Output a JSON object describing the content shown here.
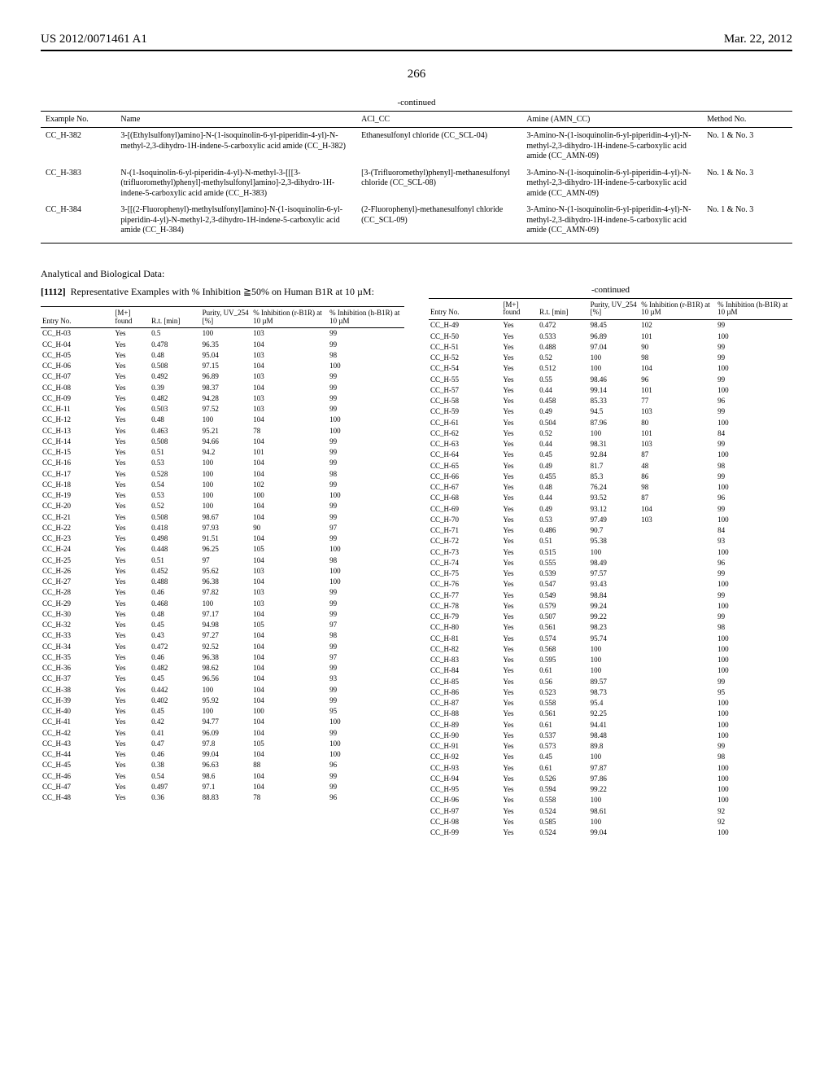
{
  "header": {
    "pub_no": "US 2012/0071461 A1",
    "date": "Mar. 22, 2012"
  },
  "page_number": "266",
  "table1": {
    "continued": "-continued",
    "headers": [
      "Example\nNo.",
      "Name",
      "ACl_CC",
      "Amine (AMN_CC)",
      "Method No."
    ],
    "rows": [
      {
        "no": "CC_H-382",
        "name": "3-[(Ethylsulfonyl)amino]-N-(1-isoquinolin-6-yl-piperidin-4-yl)-N-methyl-2,3-dihydro-1H-indene-5-carboxylic acid amide (CC_H-382)",
        "acl": "Ethanesulfonyl chloride (CC_SCL-04)",
        "amine": "3-Amino-N-(1-isoquinolin-6-yl-piperidin-4-yl)-N-methyl-2,3-dihydro-1H-indene-5-carboxylic acid amide (CC_AMN-09)",
        "method": "No. 1 & No. 3"
      },
      {
        "no": "CC_H-383",
        "name": "N-(1-Isoquinolin-6-yl-piperidin-4-yl)-N-methyl-3-[[[3-(trifluoromethyl)phenyl]-methylsulfonyl]amino]-2,3-dihydro-1H-indene-5-carboxylic acid amide (CC_H-383)",
        "acl": "[3-(Trifluoromethyl)phenyl]-methanesulfonyl chloride (CC_SCL-08)",
        "amine": "3-Amino-N-(1-isoquinolin-6-yl-piperidin-4-yl)-N-methyl-2,3-dihydro-1H-indene-5-carboxylic acid amide (CC_AMN-09)",
        "method": "No. 1 & No. 3"
      },
      {
        "no": "CC_H-384",
        "name": "3-[[(2-Fluorophenyl)-methylsulfonyl]amino]-N-(1-isoquinolin-6-yl-piperidin-4-yl)-N-methyl-2,3-dihydro-1H-indene-5-carboxylic acid amide (CC_H-384)",
        "acl": "(2-Fluorophenyl)-methanesulfonyl chloride (CC_SCL-09)",
        "amine": "3-Amino-N-(1-isoquinolin-6-yl-piperidin-4-yl)-N-methyl-2,3-dihydro-1H-indene-5-carboxylic acid amide (CC_AMN-09)",
        "method": "No. 1 & No. 3"
      }
    ]
  },
  "section": {
    "heading": "Analytical and Biological Data:",
    "para_num": "[1112]",
    "sub": "Representative Examples with % Inhibition ≧50% on Human B1R at 10 µM:"
  },
  "table2": {
    "continued": "-continued",
    "headers": [
      "Entry No.",
      "[M+]\nfound",
      "R.t. [min]",
      "Purity,\nUV_254\n[%]",
      "% Inhibition\n(r-B1R) at\n10 µM",
      "% Inhibition\n(h-B1R) at\n10 µM"
    ],
    "rows_left": [
      [
        "CC_H-03",
        "Yes",
        "0.5",
        "100",
        "103",
        "99"
      ],
      [
        "CC_H-04",
        "Yes",
        "0.478",
        "96.35",
        "104",
        "99"
      ],
      [
        "CC_H-05",
        "Yes",
        "0.48",
        "95.04",
        "103",
        "98"
      ],
      [
        "CC_H-06",
        "Yes",
        "0.508",
        "97.15",
        "104",
        "100"
      ],
      [
        "CC_H-07",
        "Yes",
        "0.492",
        "96.89",
        "103",
        "99"
      ],
      [
        "CC_H-08",
        "Yes",
        "0.39",
        "98.37",
        "104",
        "99"
      ],
      [
        "CC_H-09",
        "Yes",
        "0.482",
        "94.28",
        "103",
        "99"
      ],
      [
        "CC_H-11",
        "Yes",
        "0.503",
        "97.52",
        "103",
        "99"
      ],
      [
        "CC_H-12",
        "Yes",
        "0.48",
        "100",
        "104",
        "100"
      ],
      [
        "CC_H-13",
        "Yes",
        "0.463",
        "95.21",
        "78",
        "100"
      ],
      [
        "CC_H-14",
        "Yes",
        "0.508",
        "94.66",
        "104",
        "99"
      ],
      [
        "CC_H-15",
        "Yes",
        "0.51",
        "94.2",
        "101",
        "99"
      ],
      [
        "CC_H-16",
        "Yes",
        "0.53",
        "100",
        "104",
        "99"
      ],
      [
        "CC_H-17",
        "Yes",
        "0.528",
        "100",
        "104",
        "98"
      ],
      [
        "CC_H-18",
        "Yes",
        "0.54",
        "100",
        "102",
        "99"
      ],
      [
        "CC_H-19",
        "Yes",
        "0.53",
        "100",
        "100",
        "100"
      ],
      [
        "CC_H-20",
        "Yes",
        "0.52",
        "100",
        "104",
        "99"
      ],
      [
        "CC_H-21",
        "Yes",
        "0.508",
        "98.67",
        "104",
        "99"
      ],
      [
        "CC_H-22",
        "Yes",
        "0.418",
        "97.93",
        "90",
        "97"
      ],
      [
        "CC_H-23",
        "Yes",
        "0.498",
        "91.51",
        "104",
        "99"
      ],
      [
        "CC_H-24",
        "Yes",
        "0.448",
        "96.25",
        "105",
        "100"
      ],
      [
        "CC_H-25",
        "Yes",
        "0.51",
        "97",
        "104",
        "98"
      ],
      [
        "CC_H-26",
        "Yes",
        "0.452",
        "95.62",
        "103",
        "100"
      ],
      [
        "CC_H-27",
        "Yes",
        "0.488",
        "96.38",
        "104",
        "100"
      ],
      [
        "CC_H-28",
        "Yes",
        "0.46",
        "97.82",
        "103",
        "99"
      ],
      [
        "CC_H-29",
        "Yes",
        "0.468",
        "100",
        "103",
        "99"
      ],
      [
        "CC_H-30",
        "Yes",
        "0.48",
        "97.17",
        "104",
        "99"
      ],
      [
        "CC_H-32",
        "Yes",
        "0.45",
        "94.98",
        "105",
        "97"
      ],
      [
        "CC_H-33",
        "Yes",
        "0.43",
        "97.27",
        "104",
        "98"
      ],
      [
        "CC_H-34",
        "Yes",
        "0.472",
        "92.52",
        "104",
        "99"
      ],
      [
        "CC_H-35",
        "Yes",
        "0.46",
        "96.38",
        "104",
        "97"
      ],
      [
        "CC_H-36",
        "Yes",
        "0.482",
        "98.62",
        "104",
        "99"
      ],
      [
        "CC_H-37",
        "Yes",
        "0.45",
        "96.56",
        "104",
        "93"
      ],
      [
        "CC_H-38",
        "Yes",
        "0.442",
        "100",
        "104",
        "99"
      ],
      [
        "CC_H-39",
        "Yes",
        "0.402",
        "95.92",
        "104",
        "99"
      ],
      [
        "CC_H-40",
        "Yes",
        "0.45",
        "100",
        "100",
        "95"
      ],
      [
        "CC_H-41",
        "Yes",
        "0.42",
        "94.77",
        "104",
        "100"
      ],
      [
        "CC_H-42",
        "Yes",
        "0.41",
        "96.09",
        "104",
        "99"
      ],
      [
        "CC_H-43",
        "Yes",
        "0.47",
        "97.8",
        "105",
        "100"
      ],
      [
        "CC_H-44",
        "Yes",
        "0.46",
        "99.04",
        "104",
        "100"
      ],
      [
        "CC_H-45",
        "Yes",
        "0.38",
        "96.63",
        "88",
        "96"
      ],
      [
        "CC_H-46",
        "Yes",
        "0.54",
        "98.6",
        "104",
        "99"
      ],
      [
        "CC_H-47",
        "Yes",
        "0.497",
        "97.1",
        "104",
        "99"
      ],
      [
        "CC_H-48",
        "Yes",
        "0.36",
        "88.83",
        "78",
        "96"
      ]
    ],
    "rows_right": [
      [
        "CC_H-49",
        "Yes",
        "0.472",
        "98.45",
        "102",
        "99"
      ],
      [
        "CC_H-50",
        "Yes",
        "0.533",
        "96.89",
        "101",
        "100"
      ],
      [
        "CC_H-51",
        "Yes",
        "0.488",
        "97.04",
        "90",
        "99"
      ],
      [
        "CC_H-52",
        "Yes",
        "0.52",
        "100",
        "98",
        "99"
      ],
      [
        "CC_H-54",
        "Yes",
        "0.512",
        "100",
        "104",
        "100"
      ],
      [
        "CC_H-55",
        "Yes",
        "0.55",
        "98.46",
        "96",
        "99"
      ],
      [
        "CC_H-57",
        "Yes",
        "0.44",
        "99.14",
        "101",
        "100"
      ],
      [
        "CC_H-58",
        "Yes",
        "0.458",
        "85.33",
        "77",
        "96"
      ],
      [
        "CC_H-59",
        "Yes",
        "0.49",
        "94.5",
        "103",
        "99"
      ],
      [
        "CC_H-61",
        "Yes",
        "0.504",
        "87.96",
        "80",
        "100"
      ],
      [
        "CC_H-62",
        "Yes",
        "0.52",
        "100",
        "101",
        "84"
      ],
      [
        "CC_H-63",
        "Yes",
        "0.44",
        "98.31",
        "103",
        "99"
      ],
      [
        "CC_H-64",
        "Yes",
        "0.45",
        "92.84",
        "87",
        "100"
      ],
      [
        "CC_H-65",
        "Yes",
        "0.49",
        "81.7",
        "48",
        "98"
      ],
      [
        "CC_H-66",
        "Yes",
        "0.455",
        "85.3",
        "86",
        "99"
      ],
      [
        "CC_H-67",
        "Yes",
        "0.48",
        "76.24",
        "98",
        "100"
      ],
      [
        "CC_H-68",
        "Yes",
        "0.44",
        "93.52",
        "87",
        "96"
      ],
      [
        "CC_H-69",
        "Yes",
        "0.49",
        "93.12",
        "104",
        "99"
      ],
      [
        "CC_H-70",
        "Yes",
        "0.53",
        "97.49",
        "103",
        "100"
      ],
      [
        "CC_H-71",
        "Yes",
        "0.486",
        "90.7",
        "",
        "84"
      ],
      [
        "CC_H-72",
        "Yes",
        "0.51",
        "95.38",
        "",
        "93"
      ],
      [
        "CC_H-73",
        "Yes",
        "0.515",
        "100",
        "",
        "100"
      ],
      [
        "CC_H-74",
        "Yes",
        "0.555",
        "98.49",
        "",
        "96"
      ],
      [
        "CC_H-75",
        "Yes",
        "0.539",
        "97.57",
        "",
        "99"
      ],
      [
        "CC_H-76",
        "Yes",
        "0.547",
        "93.43",
        "",
        "100"
      ],
      [
        "CC_H-77",
        "Yes",
        "0.549",
        "98.84",
        "",
        "99"
      ],
      [
        "CC_H-78",
        "Yes",
        "0.579",
        "99.24",
        "",
        "100"
      ],
      [
        "CC_H-79",
        "Yes",
        "0.507",
        "99.22",
        "",
        "99"
      ],
      [
        "CC_H-80",
        "Yes",
        "0.561",
        "98.23",
        "",
        "98"
      ],
      [
        "CC_H-81",
        "Yes",
        "0.574",
        "95.74",
        "",
        "100"
      ],
      [
        "CC_H-82",
        "Yes",
        "0.568",
        "100",
        "",
        "100"
      ],
      [
        "CC_H-83",
        "Yes",
        "0.595",
        "100",
        "",
        "100"
      ],
      [
        "CC_H-84",
        "Yes",
        "0.61",
        "100",
        "",
        "100"
      ],
      [
        "CC_H-85",
        "Yes",
        "0.56",
        "89.57",
        "",
        "99"
      ],
      [
        "CC_H-86",
        "Yes",
        "0.523",
        "98.73",
        "",
        "95"
      ],
      [
        "CC_H-87",
        "Yes",
        "0.558",
        "95.4",
        "",
        "100"
      ],
      [
        "CC_H-88",
        "Yes",
        "0.561",
        "92.25",
        "",
        "100"
      ],
      [
        "CC_H-89",
        "Yes",
        "0.61",
        "94.41",
        "",
        "100"
      ],
      [
        "CC_H-90",
        "Yes",
        "0.537",
        "98.48",
        "",
        "100"
      ],
      [
        "CC_H-91",
        "Yes",
        "0.573",
        "89.8",
        "",
        "99"
      ],
      [
        "CC_H-92",
        "Yes",
        "0.45",
        "100",
        "",
        "98"
      ],
      [
        "CC_H-93",
        "Yes",
        "0.61",
        "97.87",
        "",
        "100"
      ],
      [
        "CC_H-94",
        "Yes",
        "0.526",
        "97.86",
        "",
        "100"
      ],
      [
        "CC_H-95",
        "Yes",
        "0.594",
        "99.22",
        "",
        "100"
      ],
      [
        "CC_H-96",
        "Yes",
        "0.558",
        "100",
        "",
        "100"
      ],
      [
        "CC_H-97",
        "Yes",
        "0.524",
        "98.61",
        "",
        "92"
      ],
      [
        "CC_H-98",
        "Yes",
        "0.585",
        "100",
        "",
        "92"
      ],
      [
        "CC_H-99",
        "Yes",
        "0.524",
        "99.04",
        "",
        "100"
      ]
    ]
  }
}
